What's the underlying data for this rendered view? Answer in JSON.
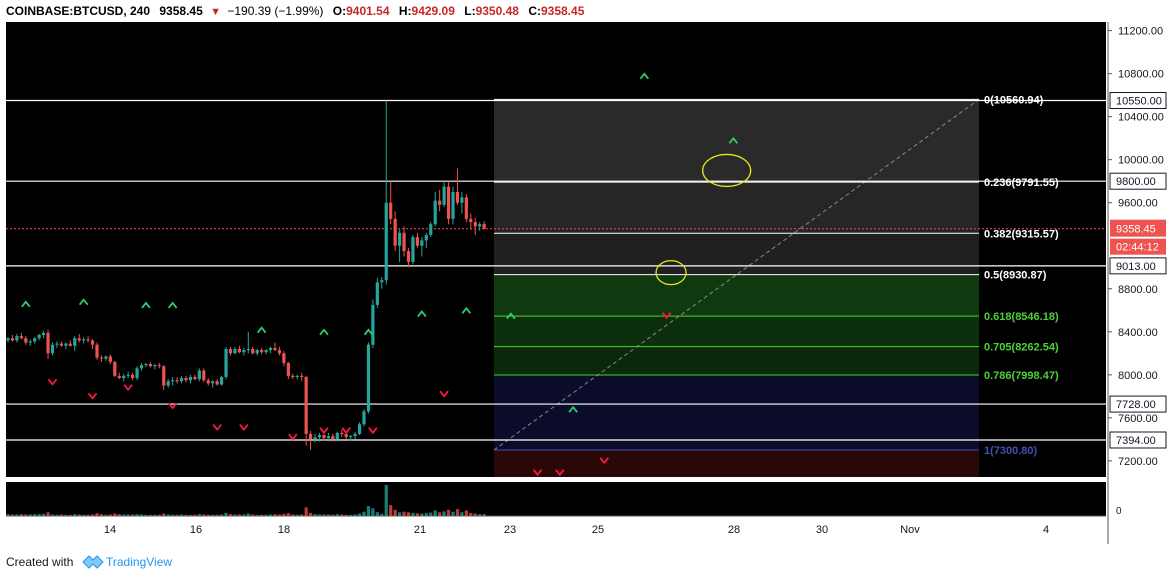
{
  "header": {
    "symbol": "COINBASE:BTCUSD, 240",
    "last": "9358.45",
    "change": "−190.39 (−1.99%)",
    "open_label": "O:",
    "open": "9401.54",
    "high_label": "H:",
    "high": "9429.09",
    "low_label": "L:",
    "low": "9350.48",
    "close_label": "C:",
    "close": "9358.45"
  },
  "footer": {
    "created_with": "Created with",
    "brand": "TradingView"
  },
  "colors": {
    "up": "#26a69a",
    "down": "#ef5350",
    "background": "#000000",
    "signal_up": "#2ecc71",
    "signal_down": "#ff1744",
    "highlight_circle": "#e6e619",
    "price_tag": "#ef5350"
  },
  "chart_data": {
    "type": "candlestick",
    "yrange": [
      7050,
      11280
    ],
    "ylabels": [
      "11200.00",
      "10800.00",
      "10400.00",
      "10000.00",
      "9600.00",
      "8800.00",
      "8400.00",
      "8000.00",
      "7600.00",
      "7200.00"
    ],
    "yticks": [
      11200,
      10800,
      10400,
      10000,
      9600,
      8800,
      8400,
      8000,
      7600,
      7200
    ],
    "xlabels": [
      "14",
      "16",
      "18",
      "21",
      "23",
      "25",
      "28",
      "30",
      "Nov",
      "4"
    ],
    "horizontal_levels": [
      {
        "price": 10550,
        "label": "10550.00"
      },
      {
        "price": 9800,
        "label": "9800.00"
      },
      {
        "price": 9013,
        "label": "9013.00"
      },
      {
        "price": 7728,
        "label": "7728.00"
      },
      {
        "price": 7394,
        "label": "7394.00"
      }
    ],
    "current_price": {
      "value": "9358.45",
      "countdown": "02:44:12",
      "price": 9358.45
    },
    "fib_levels": [
      {
        "label": "0(10560.94)",
        "price": 10560.94,
        "color": "#ffffff",
        "fill": "#2a2a2a"
      },
      {
        "label": "0.236(9791.55)",
        "price": 9791.55,
        "color": "#ffffff",
        "fill": "#262626"
      },
      {
        "label": "0.382(9315.57)",
        "price": 9315.57,
        "color": "#ffffff",
        "fill": "#202020"
      },
      {
        "label": "0.5(8930.87)",
        "price": 8930.87,
        "color": "#ffffff",
        "fill": "#0f3a0f"
      },
      {
        "label": "0.618(8546.18)",
        "price": 8546.18,
        "color": "#4cd137",
        "fill": "#0c300c"
      },
      {
        "label": "0.705(8262.54)",
        "price": 8262.54,
        "color": "#4cd137",
        "fill": "#0a280a"
      },
      {
        "label": "0.786(7998.47)",
        "price": 7998.47,
        "color": "#4cd137",
        "fill": "#0b0b2a"
      },
      {
        "label": "1(7300.80)",
        "price": 7300.8,
        "color": "#3f51b5",
        "fill": "#2a0808"
      }
    ],
    "candles": [
      [
        8320,
        8350,
        8300,
        8340
      ],
      [
        8340,
        8370,
        8310,
        8320
      ],
      [
        8320,
        8380,
        8300,
        8360
      ],
      [
        8360,
        8390,
        8330,
        8340
      ],
      [
        8340,
        8360,
        8280,
        8300
      ],
      [
        8300,
        8330,
        8270,
        8310
      ],
      [
        8310,
        8350,
        8290,
        8340
      ],
      [
        8340,
        8380,
        8320,
        8370
      ],
      [
        8370,
        8410,
        8340,
        8390
      ],
      [
        8390,
        8420,
        8150,
        8200
      ],
      [
        8200,
        8300,
        8180,
        8280
      ],
      [
        8280,
        8310,
        8250,
        8290
      ],
      [
        8290,
        8310,
        8260,
        8270
      ],
      [
        8270,
        8300,
        8240,
        8290
      ],
      [
        8290,
        8320,
        8260,
        8270
      ],
      [
        8270,
        8360,
        8220,
        8340
      ],
      [
        8340,
        8380,
        8300,
        8320
      ],
      [
        8320,
        8350,
        8290,
        8330
      ],
      [
        8330,
        8360,
        8300,
        8320
      ],
      [
        8320,
        8330,
        8240,
        8280
      ],
      [
        8280,
        8300,
        8140,
        8160
      ],
      [
        8160,
        8180,
        8120,
        8150
      ],
      [
        8150,
        8180,
        8130,
        8170
      ],
      [
        8170,
        8190,
        8100,
        8120
      ],
      [
        8120,
        8130,
        7980,
        7990
      ],
      [
        7990,
        8020,
        7960,
        7970
      ],
      [
        7970,
        8010,
        7940,
        7990
      ],
      [
        7990,
        8030,
        7970,
        8000
      ],
      [
        8000,
        8020,
        7950,
        7970
      ],
      [
        7970,
        8080,
        7950,
        8060
      ],
      [
        8060,
        8110,
        8040,
        8090
      ],
      [
        8090,
        8110,
        8070,
        8100
      ],
      [
        8100,
        8120,
        8070,
        8080
      ],
      [
        8080,
        8100,
        8050,
        8090
      ],
      [
        8090,
        8110,
        8060,
        8080
      ],
      [
        8080,
        8090,
        7860,
        7900
      ],
      [
        7900,
        7960,
        7880,
        7940
      ],
      [
        7940,
        7980,
        7900,
        7950
      ],
      [
        7950,
        7980,
        7920,
        7940
      ],
      [
        7940,
        7990,
        7920,
        7970
      ],
      [
        7970,
        7990,
        7930,
        7950
      ],
      [
        7950,
        8000,
        7920,
        7980
      ],
      [
        7980,
        8000,
        7950,
        7960
      ],
      [
        7960,
        8060,
        7940,
        8040
      ],
      [
        8040,
        8060,
        7930,
        7950
      ],
      [
        7950,
        7970,
        7900,
        7920
      ],
      [
        7920,
        7950,
        7880,
        7940
      ],
      [
        7940,
        7960,
        7900,
        7910
      ],
      [
        7910,
        7990,
        7900,
        7980
      ],
      [
        7980,
        8260,
        7960,
        8240
      ],
      [
        8240,
        8260,
        8180,
        8200
      ],
      [
        8200,
        8260,
        8190,
        8240
      ],
      [
        8240,
        8270,
        8200,
        8210
      ],
      [
        8210,
        8250,
        8180,
        8230
      ],
      [
        8230,
        8400,
        8200,
        8240
      ],
      [
        8240,
        8260,
        8190,
        8200
      ],
      [
        8200,
        8240,
        8180,
        8230
      ],
      [
        8230,
        8250,
        8190,
        8210
      ],
      [
        8210,
        8240,
        8190,
        8230
      ],
      [
        8230,
        8260,
        8200,
        8250
      ],
      [
        8250,
        8300,
        8220,
        8230
      ],
      [
        8230,
        8260,
        8180,
        8200
      ],
      [
        8200,
        8220,
        8080,
        8110
      ],
      [
        8110,
        8120,
        7960,
        7990
      ],
      [
        7990,
        8010,
        7960,
        7980
      ],
      [
        7980,
        8000,
        7960,
        7990
      ],
      [
        7990,
        8020,
        7940,
        7980
      ],
      [
        7980,
        7990,
        7340,
        7450
      ],
      [
        7450,
        7480,
        7300,
        7400
      ],
      [
        7400,
        7450,
        7370,
        7420
      ],
      [
        7420,
        7460,
        7380,
        7440
      ],
      [
        7440,
        7470,
        7390,
        7410
      ],
      [
        7410,
        7460,
        7380,
        7430
      ],
      [
        7430,
        7450,
        7380,
        7400
      ],
      [
        7400,
        7470,
        7380,
        7460
      ],
      [
        7460,
        7490,
        7420,
        7450
      ],
      [
        7450,
        7470,
        7400,
        7420
      ],
      [
        7420,
        7440,
        7390,
        7430
      ],
      [
        7430,
        7470,
        7400,
        7450
      ],
      [
        7450,
        7560,
        7440,
        7540
      ],
      [
        7540,
        7680,
        7520,
        7660
      ],
      [
        7660,
        8300,
        7640,
        8280
      ],
      [
        8280,
        8700,
        8250,
        8650
      ],
      [
        8650,
        8900,
        8620,
        8860
      ],
      [
        8860,
        8910,
        8800,
        8880
      ],
      [
        8880,
        10550,
        8840,
        9600
      ],
      [
        9600,
        9800,
        9400,
        9450
      ],
      [
        9450,
        9520,
        9150,
        9200
      ],
      [
        9200,
        9350,
        9050,
        9320
      ],
      [
        9320,
        9380,
        9100,
        9150
      ],
      [
        9150,
        9180,
        9000,
        9050
      ],
      [
        9050,
        9300,
        9030,
        9280
      ],
      [
        9280,
        9320,
        9180,
        9200
      ],
      [
        9200,
        9280,
        9100,
        9250
      ],
      [
        9250,
        9320,
        9180,
        9300
      ],
      [
        9300,
        9420,
        9280,
        9400
      ],
      [
        9400,
        9700,
        9380,
        9620
      ],
      [
        9620,
        9720,
        9520,
        9580
      ],
      [
        9580,
        9800,
        9560,
        9750
      ],
      [
        9750,
        9800,
        9400,
        9450
      ],
      [
        9450,
        9750,
        9400,
        9700
      ],
      [
        9700,
        9920,
        9580,
        9600
      ],
      [
        9600,
        9700,
        9500,
        9650
      ],
      [
        9650,
        9680,
        9420,
        9450
      ],
      [
        9450,
        9500,
        9350,
        9420
      ],
      [
        9420,
        9460,
        9300,
        9380
      ],
      [
        9380,
        9420,
        9340,
        9400
      ],
      [
        9401.54,
        9429.09,
        9350.48,
        9358.45
      ]
    ],
    "volumes_pct": [
      0.06,
      0.05,
      0.05,
      0.06,
      0.05,
      0.05,
      0.06,
      0.06,
      0.07,
      0.12,
      0.05,
      0.04,
      0.05,
      0.04,
      0.04,
      0.06,
      0.05,
      0.04,
      0.04,
      0.05,
      0.09,
      0.06,
      0.04,
      0.05,
      0.08,
      0.06,
      0.05,
      0.05,
      0.05,
      0.06,
      0.05,
      0.04,
      0.04,
      0.04,
      0.04,
      0.08,
      0.05,
      0.04,
      0.04,
      0.05,
      0.04,
      0.04,
      0.04,
      0.06,
      0.05,
      0.04,
      0.04,
      0.04,
      0.05,
      0.1,
      0.06,
      0.05,
      0.05,
      0.05,
      0.08,
      0.05,
      0.04,
      0.04,
      0.04,
      0.05,
      0.06,
      0.05,
      0.07,
      0.09,
      0.05,
      0.04,
      0.05,
      0.28,
      0.1,
      0.06,
      0.05,
      0.05,
      0.05,
      0.04,
      0.06,
      0.05,
      0.04,
      0.04,
      0.05,
      0.08,
      0.14,
      0.32,
      0.25,
      0.12,
      0.07,
      1.0,
      0.35,
      0.2,
      0.12,
      0.14,
      0.12,
      0.1,
      0.09,
      0.08,
      0.09,
      0.11,
      0.18,
      0.12,
      0.15,
      0.2,
      0.14,
      0.22,
      0.12,
      0.18,
      0.1,
      0.08,
      0.06,
      0.06
    ],
    "signals_up": [
      {
        "i": 4,
        "p": 8660
      },
      {
        "i": 17,
        "p": 8680
      },
      {
        "i": 31,
        "p": 8650
      },
      {
        "i": 37,
        "p": 8650
      },
      {
        "i": 57,
        "p": 8420
      },
      {
        "i": 71,
        "p": 8400
      },
      {
        "i": 81,
        "p": 8400
      },
      {
        "i": 93,
        "p": 8570
      },
      {
        "i": 103,
        "p": 8600
      },
      {
        "i": 113,
        "p": 8550
      },
      {
        "i": 127,
        "p": 7680
      },
      {
        "i": 143,
        "p": 10780
      },
      {
        "i": 163,
        "p": 10180
      }
    ],
    "signals_down": [
      {
        "i": 10,
        "p": 7930
      },
      {
        "i": 19,
        "p": 7800
      },
      {
        "i": 27,
        "p": 7880
      },
      {
        "i": 37,
        "p": 7710
      },
      {
        "i": 47,
        "p": 7510
      },
      {
        "i": 53,
        "p": 7510
      },
      {
        "i": 64,
        "p": 7420
      },
      {
        "i": 71,
        "p": 7480
      },
      {
        "i": 76,
        "p": 7480
      },
      {
        "i": 82,
        "p": 7480
      },
      {
        "i": 98,
        "p": 7820
      },
      {
        "i": 119,
        "p": 7090
      },
      {
        "i": 124,
        "p": 7090
      },
      {
        "i": 134,
        "p": 7200
      },
      {
        "i": 148,
        "p": 8550
      }
    ],
    "circles": [
      {
        "i": 161.5,
        "p": 9900,
        "rx": 24,
        "ry": 16
      },
      {
        "i": 149,
        "p": 8950,
        "rx": 15,
        "ry": 12
      }
    ]
  }
}
